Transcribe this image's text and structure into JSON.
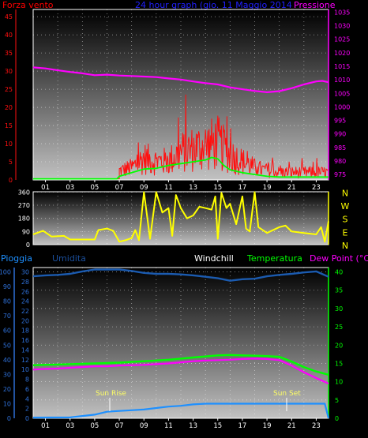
{
  "header": {
    "left_title": "Forza vento",
    "center_title": "24 hour graph (gio. 11 Maggio 2014",
    "right_title": "Pressione"
  },
  "colors": {
    "wind": "#ff1010",
    "gust": "#ff0000",
    "avg_wind": "#00ff00",
    "pressure": "#ff00ff",
    "direction": "#ffff00",
    "humidity": "#1b5bb0",
    "humidity_axis": "#2e6fd6",
    "rain": "#1e90ff",
    "temperature": "#00ff00",
    "dewpoint": "#ff00ff",
    "grid": "#ffffff",
    "background_top": "#000000",
    "background_bottom": "#bfbfbf"
  },
  "chart_data": [
    {
      "type": "line",
      "x_ticks": [
        "01",
        "03",
        "05",
        "07",
        "09",
        "11",
        "13",
        "15",
        "17",
        "19",
        "21",
        "23"
      ],
      "left_axis": {
        "label": "Forza vento",
        "ticks": [
          "0",
          "5",
          "10",
          "15",
          "20",
          "25",
          "30",
          "35",
          "40",
          "45"
        ],
        "range": [
          0,
          47
        ]
      },
      "right_axis": {
        "label": "Pressione",
        "ticks": [
          "975",
          "980",
          "985",
          "990",
          "995",
          "1000",
          "1005",
          "1010",
          "1015",
          "1020",
          "1025",
          "1030",
          "1035"
        ],
        "range": [
          973,
          1036
        ]
      },
      "x_range": [
        0,
        24
      ],
      "series": [
        {
          "key": "pressure",
          "points": [
            [
              0,
              1014.6
            ],
            [
              1,
              1014.2
            ],
            [
              2,
              1013.5
            ],
            [
              3,
              1012.9
            ],
            [
              4,
              1012.4
            ],
            [
              5,
              1011.7
            ],
            [
              6,
              1011.9
            ],
            [
              7,
              1011.6
            ],
            [
              8,
              1011.4
            ],
            [
              9,
              1011.2
            ],
            [
              10,
              1011.0
            ],
            [
              11,
              1010.5
            ],
            [
              12,
              1010.1
            ],
            [
              13,
              1009.4
            ],
            [
              14,
              1008.8
            ],
            [
              15,
              1008.3
            ],
            [
              16,
              1007.2
            ],
            [
              17,
              1006.5
            ],
            [
              18,
              1005.9
            ],
            [
              19,
              1005.4
            ],
            [
              20,
              1005.8
            ],
            [
              21,
              1006.9
            ],
            [
              22,
              1008.3
            ],
            [
              23,
              1009.4
            ],
            [
              23.5,
              1009.6
            ],
            [
              24,
              1009.1
            ]
          ]
        },
        {
          "key": "wind",
          "baseline_until": 7,
          "baseline": 0.3,
          "profile": [
            [
              7,
              3
            ],
            [
              8,
              4
            ],
            [
              9,
              7
            ],
            [
              10,
              6
            ],
            [
              11,
              6
            ],
            [
              12,
              9
            ],
            [
              13,
              10
            ],
            [
              14,
              11
            ],
            [
              15,
              12
            ],
            [
              16,
              8
            ],
            [
              17,
              6
            ],
            [
              18,
              4
            ],
            [
              19,
              3
            ],
            [
              20,
              2.5
            ],
            [
              21,
              2.5
            ],
            [
              22,
              2.5
            ],
            [
              23,
              2.5
            ],
            [
              24,
              2.5
            ]
          ]
        },
        {
          "key": "avg_wind",
          "points": [
            [
              0,
              0.3
            ],
            [
              6.8,
              0.3
            ],
            [
              7,
              1
            ],
            [
              8,
              2
            ],
            [
              9,
              3
            ],
            [
              10,
              3.2
            ],
            [
              11,
              4
            ],
            [
              12,
              4.5
            ],
            [
              13,
              5
            ],
            [
              14,
              5.5
            ],
            [
              14.5,
              6.2
            ],
            [
              15,
              5.8
            ],
            [
              15.5,
              4
            ],
            [
              16,
              2.8
            ],
            [
              17,
              2
            ],
            [
              18,
              1.5
            ],
            [
              19,
              1
            ],
            [
              20,
              0.8
            ],
            [
              21,
              0.8
            ],
            [
              22,
              0.8
            ],
            [
              23,
              0.8
            ],
            [
              24,
              0.8
            ]
          ]
        }
      ]
    },
    {
      "type": "line",
      "x_ticks": [
        "01",
        "03",
        "05",
        "07",
        "09",
        "11",
        "13",
        "15",
        "17",
        "19",
        "21",
        "23"
      ],
      "left_axis": {
        "ticks": [
          "0",
          "90",
          "180",
          "270",
          "360"
        ],
        "range": [
          0,
          362
        ]
      },
      "right_labels": [
        "N",
        "W",
        "S",
        "E",
        "N"
      ],
      "x_range": [
        0,
        24
      ],
      "series": [
        {
          "key": "direction",
          "points": [
            [
              0,
              70
            ],
            [
              0.8,
              95
            ],
            [
              1.5,
              55
            ],
            [
              2.5,
              60
            ],
            [
              3,
              35
            ],
            [
              4,
              35
            ],
            [
              5,
              35
            ],
            [
              5.3,
              100
            ],
            [
              6,
              110
            ],
            [
              6.5,
              95
            ],
            [
              7,
              20
            ],
            [
              7.5,
              30
            ],
            [
              8,
              45
            ],
            [
              8.3,
              100
            ],
            [
              8.6,
              30
            ],
            [
              9,
              360
            ],
            [
              9.5,
              40
            ],
            [
              10,
              360
            ],
            [
              10.5,
              220
            ],
            [
              11,
              250
            ],
            [
              11.3,
              60
            ],
            [
              11.6,
              340
            ],
            [
              12,
              250
            ],
            [
              12.5,
              180
            ],
            [
              13,
              200
            ],
            [
              13.5,
              260
            ],
            [
              14,
              250
            ],
            [
              14.5,
              240
            ],
            [
              14.8,
              330
            ],
            [
              15,
              40
            ],
            [
              15.3,
              355
            ],
            [
              15.7,
              250
            ],
            [
              16,
              280
            ],
            [
              16.5,
              140
            ],
            [
              17,
              330
            ],
            [
              17.3,
              110
            ],
            [
              17.6,
              90
            ],
            [
              18,
              360
            ],
            [
              18.3,
              120
            ],
            [
              19,
              80
            ],
            [
              20,
              120
            ],
            [
              20.5,
              130
            ],
            [
              21,
              90
            ],
            [
              22,
              80
            ],
            [
              23,
              70
            ],
            [
              23.4,
              120
            ],
            [
              23.7,
              20
            ],
            [
              24,
              160
            ]
          ]
        }
      ]
    },
    {
      "type": "line",
      "title_labels": {
        "rain": "Pioggia",
        "humidity": "Umidita",
        "windchill": "Windchill",
        "temperature": "Temperatura",
        "dewpoint": "Dew Point (°C)"
      },
      "x_ticks": [
        "01",
        "03",
        "05",
        "07",
        "09",
        "11",
        "13",
        "15",
        "17",
        "19",
        "21",
        "23"
      ],
      "rain_axis": {
        "ticks": [
          "0",
          "10",
          "20",
          "30",
          "40",
          "50",
          "60",
          "70",
          "80",
          "90",
          "100"
        ],
        "range": [
          0,
          103
        ]
      },
      "humidity_axis": {
        "ticks": [
          "0",
          "2",
          "4",
          "6",
          "8",
          "10",
          "12",
          "14",
          "16",
          "18",
          "20",
          "22",
          "24",
          "26",
          "28",
          "30"
        ],
        "range": [
          0,
          30.9
        ]
      },
      "temperature_axis": {
        "ticks": [
          "0",
          "5",
          "10",
          "15",
          "20",
          "25",
          "30",
          "35",
          "40"
        ],
        "range": [
          0,
          41.2
        ]
      },
      "x_range": [
        0,
        24
      ],
      "annotations": [
        {
          "text": "Sun Rise",
          "x": 5.85
        },
        {
          "text": "Sun Set",
          "x": 20.75
        }
      ],
      "series": [
        {
          "key": "humidity",
          "points": [
            [
              0,
              29.1
            ],
            [
              1,
              29.3
            ],
            [
              2,
              29.4
            ],
            [
              3,
              29.6
            ],
            [
              4,
              30.1
            ],
            [
              5,
              30.5
            ],
            [
              6,
              30.5
            ],
            [
              7,
              30.5
            ],
            [
              8,
              30.2
            ],
            [
              9,
              29.8
            ],
            [
              10,
              29.6
            ],
            [
              11,
              29.6
            ],
            [
              12,
              29.5
            ],
            [
              13,
              29.3
            ],
            [
              14,
              29.0
            ],
            [
              15,
              28.7
            ],
            [
              16,
              28.2
            ],
            [
              17,
              28.5
            ],
            [
              18,
              28.6
            ],
            [
              19,
              29.1
            ],
            [
              20,
              29.4
            ],
            [
              21,
              29.6
            ],
            [
              22,
              29.9
            ],
            [
              23,
              30.1
            ],
            [
              24,
              29.0
            ]
          ]
        },
        {
          "key": "rain",
          "points": [
            [
              0,
              0.5
            ],
            [
              3,
              0.6
            ],
            [
              5,
              2.5
            ],
            [
              6,
              4.5
            ],
            [
              7,
              5
            ],
            [
              8,
              5.5
            ],
            [
              9,
              6
            ],
            [
              10,
              7
            ],
            [
              11,
              8
            ],
            [
              12,
              8.5
            ],
            [
              13,
              9.5
            ],
            [
              14,
              10
            ],
            [
              15,
              10
            ],
            [
              16,
              10
            ],
            [
              17,
              10
            ],
            [
              18,
              10
            ],
            [
              19,
              10
            ],
            [
              20,
              10
            ],
            [
              21,
              10
            ],
            [
              22,
              10
            ],
            [
              23,
              10
            ],
            [
              23.7,
              10
            ],
            [
              24,
              0
            ]
          ]
        },
        {
          "key": "temperature",
          "points": [
            [
              0,
              14.5
            ],
            [
              1,
              14.6
            ],
            [
              2,
              14.7
            ],
            [
              3,
              14.8
            ],
            [
              4,
              14.9
            ],
            [
              5,
              15.0
            ],
            [
              6,
              15.1
            ],
            [
              7,
              15.2
            ],
            [
              8,
              15.4
            ],
            [
              9,
              15.6
            ],
            [
              10,
              15.8
            ],
            [
              11,
              16.0
            ],
            [
              12,
              16.3
            ],
            [
              13,
              16.6
            ],
            [
              14,
              16.9
            ],
            [
              15,
              17.2
            ],
            [
              16,
              17.3
            ],
            [
              17,
              17.2
            ],
            [
              18,
              17.1
            ],
            [
              19,
              17.0
            ],
            [
              20,
              16.8
            ],
            [
              21,
              15.5
            ],
            [
              22,
              14.0
            ],
            [
              23,
              12.8
            ],
            [
              24,
              11.9
            ]
          ]
        },
        {
          "key": "dewpoint",
          "points": [
            [
              0,
              13.3
            ],
            [
              1,
              13.5
            ],
            [
              2,
              13.6
            ],
            [
              3,
              13.8
            ],
            [
              4,
              14.0
            ],
            [
              5,
              14.2
            ],
            [
              6,
              14.2
            ],
            [
              7,
              14.4
            ],
            [
              8,
              14.5
            ],
            [
              9,
              14.6
            ],
            [
              10,
              14.8
            ],
            [
              11,
              15.0
            ],
            [
              12,
              15.3
            ],
            [
              13,
              15.6
            ],
            [
              14,
              15.8
            ],
            [
              15,
              15.9
            ],
            [
              16,
              16.0
            ],
            [
              17,
              16.2
            ],
            [
              18,
              16.3
            ],
            [
              19,
              16.2
            ],
            [
              20,
              15.9
            ],
            [
              21,
              14.4
            ],
            [
              22,
              12.6
            ],
            [
              23,
              11.0
            ],
            [
              24,
              9.5
            ]
          ]
        }
      ]
    }
  ]
}
